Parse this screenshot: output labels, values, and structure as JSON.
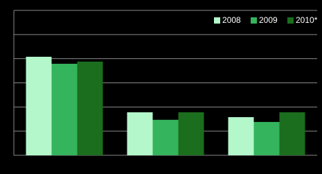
{
  "chart_data": {
    "type": "bar",
    "categories": [
      null,
      null,
      null
    ],
    "series": [
      {
        "name": "2008",
        "color": "#b3f7cb",
        "values": [
          4.08,
          1.78,
          1.58
        ]
      },
      {
        "name": "2009",
        "color": "#34b45c",
        "values": [
          3.79,
          1.47,
          1.38
        ]
      },
      {
        "name": "2010*",
        "color": "#1b6e1e",
        "values": [
          3.88,
          1.78,
          1.78
        ]
      }
    ],
    "ylim": [
      0,
      6
    ],
    "yticks": [
      0,
      1,
      2,
      3,
      4,
      5,
      6
    ],
    "grid": true,
    "legend": "top-right"
  }
}
